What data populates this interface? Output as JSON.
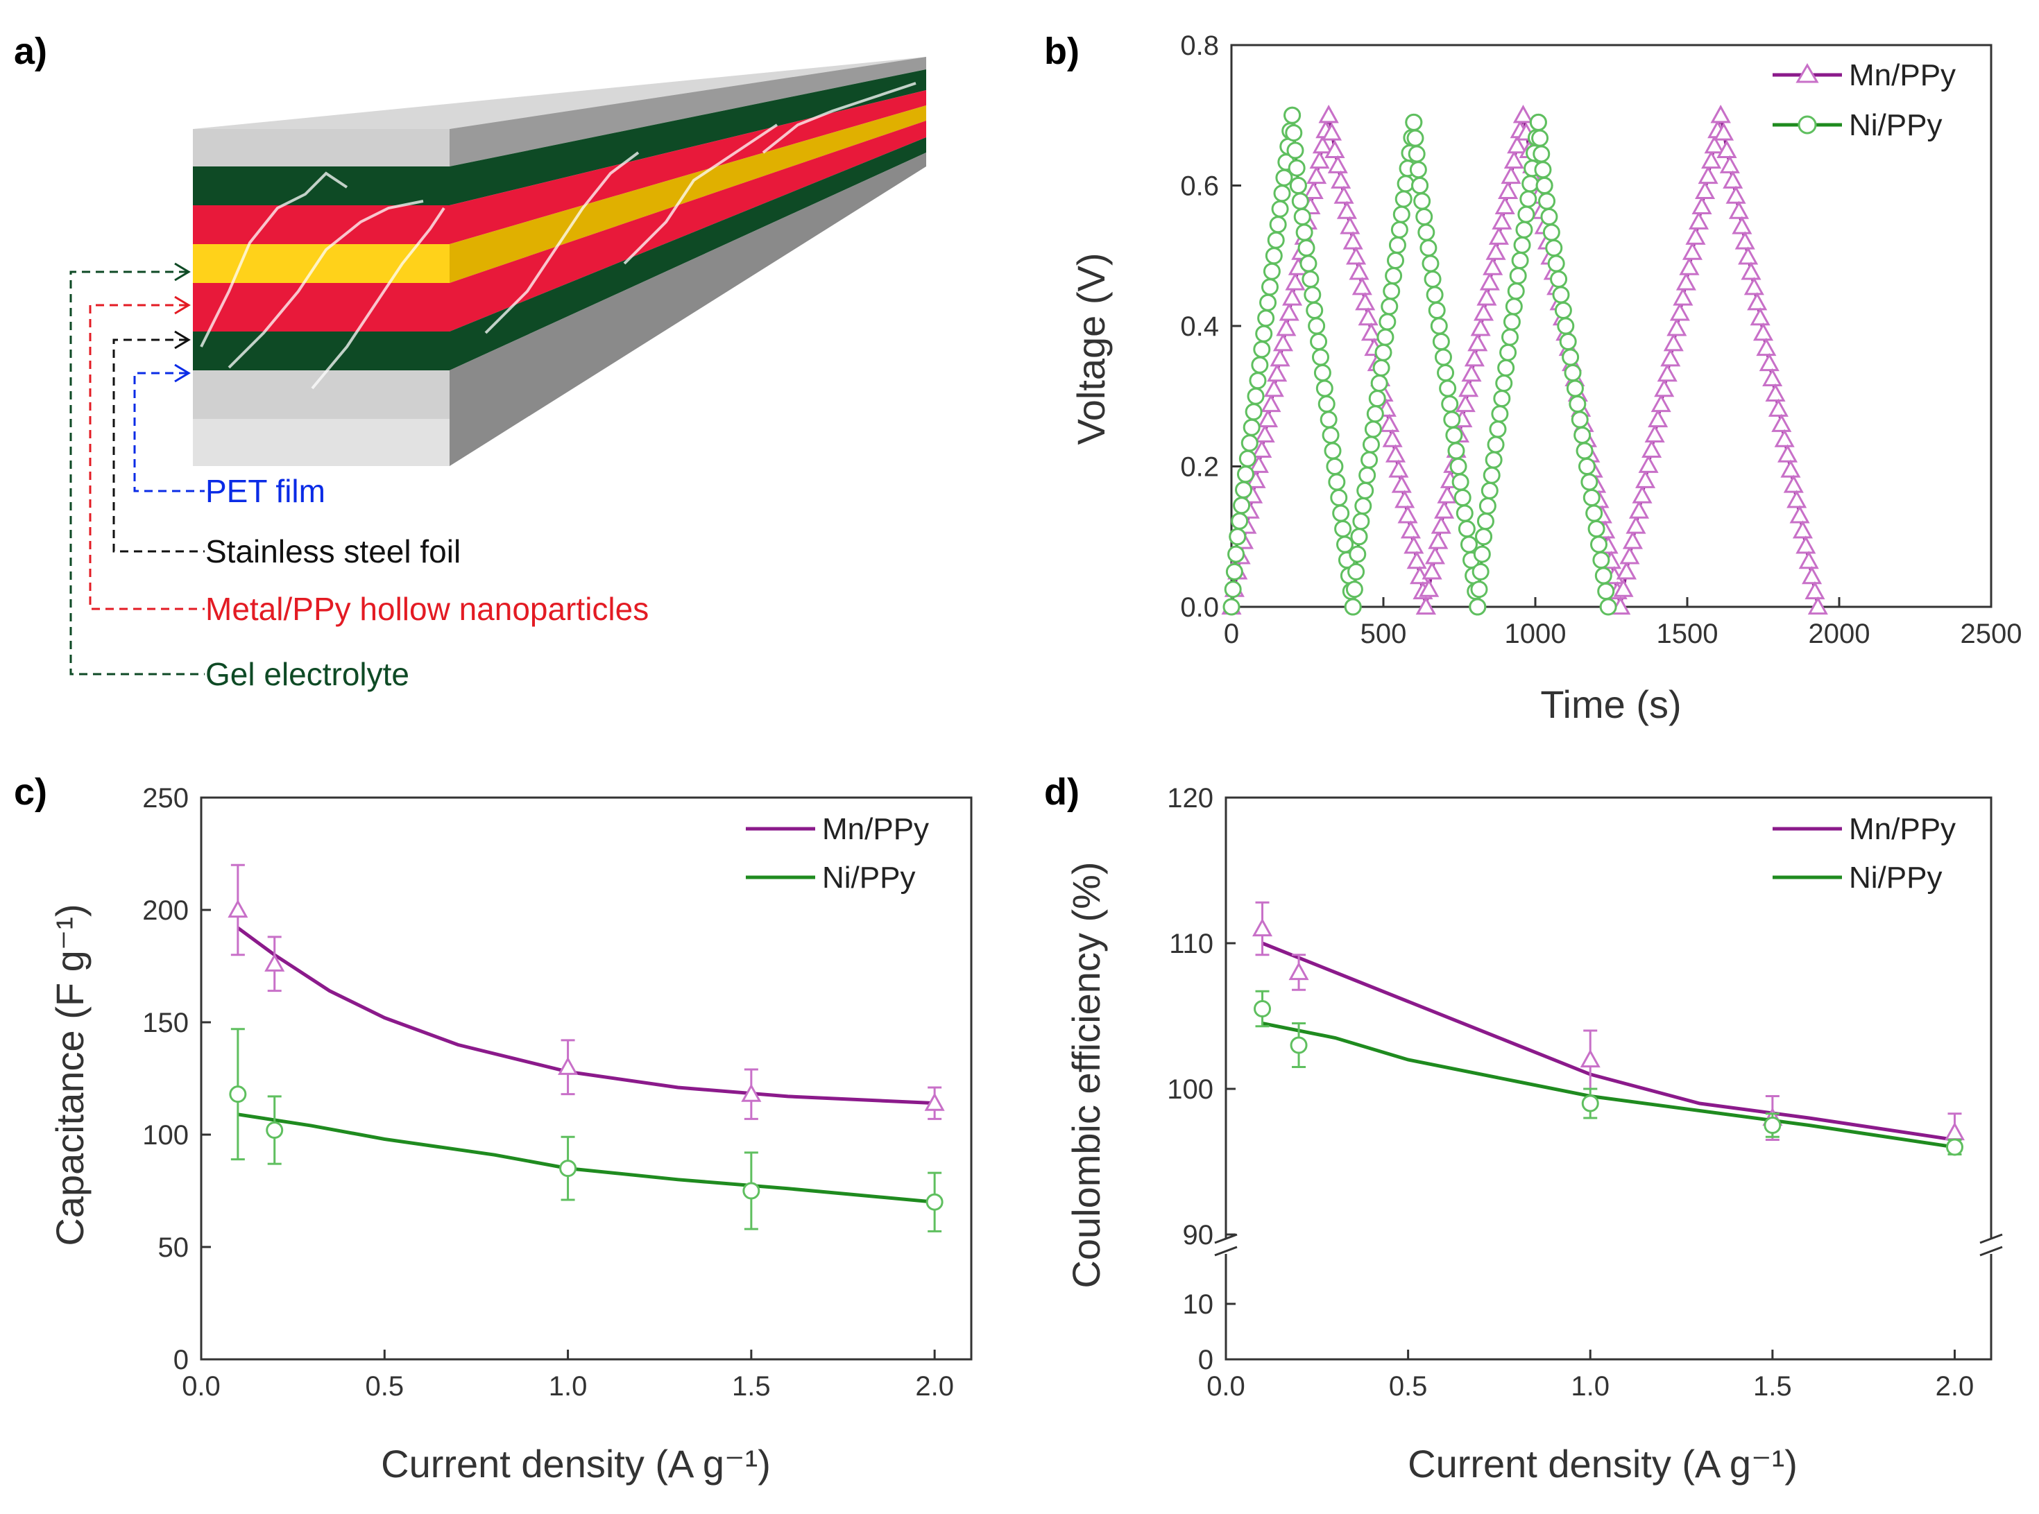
{
  "colors": {
    "mn": "#8B1A8B",
    "mn_light": "#C870C8",
    "ni": "#1F8B1F",
    "ni_light": "#5FBF5F",
    "gel": "#0E4A25",
    "red_layer": "#E8193A",
    "gold_layer": "#FFD21A",
    "pet": "#0A2BE6",
    "metal_text": "#E31B23",
    "steel_text": "#111111",
    "axis": "#333333"
  },
  "panel_a": {
    "label": "a)",
    "layers": [
      {
        "label": "PET film",
        "color": "#0A2BE6"
      },
      {
        "label": "Stainless steel foil",
        "color": "#111111"
      },
      {
        "label": "Metal/PPy hollow nanoparticles",
        "color": "#E31B23"
      },
      {
        "label": "Gel electrolyte",
        "color": "#0E4A25"
      }
    ]
  },
  "chart_data": [
    {
      "panel": "b)",
      "type": "line",
      "xlabel": "Time (s)",
      "ylabel": "Voltage (V)",
      "xlim": [
        0,
        2500
      ],
      "ylim": [
        0,
        0.8
      ],
      "xticks": [
        0,
        500,
        1000,
        1500,
        2000,
        2500
      ],
      "yticks": [
        0.0,
        0.2,
        0.4,
        0.6,
        0.8
      ],
      "xtick_labels": [
        "0",
        "500",
        "1000",
        "1500",
        "2000",
        "2500"
      ],
      "ytick_labels": [
        "0.0",
        "0.2",
        "0.4",
        "0.6",
        "0.8"
      ],
      "legend_position": "top-right",
      "series": [
        {
          "name": "Mn/PPy",
          "marker": "triangle",
          "color_key": "mn",
          "x": [
            0,
            20,
            320,
            340,
            640,
            660,
            960,
            980,
            1280,
            1300,
            1610,
            1630,
            1930
          ],
          "y": [
            0.0,
            0.05,
            0.7,
            0.65,
            0.0,
            0.05,
            0.7,
            0.65,
            0.0,
            0.05,
            0.7,
            0.65,
            0.0
          ]
        },
        {
          "name": "Ni/PPy",
          "marker": "circle",
          "color_key": "ni",
          "x": [
            0,
            20,
            200,
            220,
            400,
            420,
            600,
            620,
            810,
            830,
            1010,
            1030,
            1240
          ],
          "y": [
            0.0,
            0.1,
            0.7,
            0.6,
            0.0,
            0.1,
            0.69,
            0.6,
            0.0,
            0.1,
            0.69,
            0.6,
            0.0
          ]
        }
      ]
    },
    {
      "panel": "c)",
      "type": "scatter",
      "xlabel": "Current density (A g⁻¹)",
      "ylabel": "Capacitance (F g⁻¹)",
      "xlim": [
        0,
        2.1
      ],
      "ylim": [
        0,
        250
      ],
      "xticks": [
        0.0,
        0.5,
        1.0,
        1.5,
        2.0
      ],
      "yticks": [
        0,
        50,
        100,
        150,
        200,
        250
      ],
      "xtick_labels": [
        "0.0",
        "0.5",
        "1.0",
        "1.5",
        "2.0"
      ],
      "ytick_labels": [
        "0",
        "50",
        "100",
        "150",
        "200",
        "250"
      ],
      "legend_position": "top-right",
      "series": [
        {
          "name": "Mn/PPy",
          "marker": "triangle",
          "color_key": "mn",
          "x": [
            0.1,
            0.2,
            1.0,
            1.5,
            2.0
          ],
          "y": [
            200,
            176,
            130,
            118,
            114
          ],
          "err": [
            20,
            12,
            12,
            11,
            7
          ],
          "fit": {
            "x": [
              0.1,
              0.2,
              0.35,
              0.5,
              0.7,
              1.0,
              1.3,
              1.6,
              2.0
            ],
            "y": [
              192,
              180,
              164,
              152,
              140,
              128,
              121,
              117,
              114
            ]
          }
        },
        {
          "name": "Ni/PPy",
          "marker": "circle",
          "color_key": "ni",
          "x": [
            0.1,
            0.2,
            1.0,
            1.5,
            2.0
          ],
          "y": [
            118,
            102,
            85,
            75,
            70
          ],
          "err": [
            29,
            15,
            14,
            17,
            13
          ],
          "fit": {
            "x": [
              0.1,
              0.3,
              0.5,
              0.8,
              1.0,
              1.3,
              1.6,
              2.0
            ],
            "y": [
              109,
              104,
              98,
              91,
              85,
              80,
              76,
              70
            ]
          }
        }
      ]
    },
    {
      "panel": "d)",
      "type": "scatter",
      "xlabel": "Current density (A g⁻¹)",
      "ylabel": "Coulombic efficiency (%)",
      "xlim": [
        0,
        2.1
      ],
      "broken_y_axis": {
        "lower_range": [
          0,
          15
        ],
        "upper_range": [
          90,
          120
        ]
      },
      "xticks": [
        0.0,
        0.5,
        1.0,
        1.5,
        2.0
      ],
      "xtick_labels": [
        "0.0",
        "0.5",
        "1.0",
        "1.5",
        "2.0"
      ],
      "yticks_lower": [
        0,
        10
      ],
      "ytick_labels_lower": [
        "0",
        "10"
      ],
      "yticks_upper": [
        90,
        100,
        110,
        120
      ],
      "ytick_labels_upper": [
        "90",
        "100",
        "110",
        "120"
      ],
      "legend_position": "top-right",
      "series": [
        {
          "name": "Mn/PPy",
          "marker": "triangle",
          "color_key": "mn",
          "x": [
            0.1,
            0.2,
            1.0,
            1.5,
            2.0
          ],
          "y": [
            111,
            108,
            102,
            98,
            97
          ],
          "err": [
            1.8,
            1.2,
            2.0,
            1.5,
            1.3
          ],
          "fit": {
            "x": [
              0.1,
              0.3,
              0.5,
              0.8,
              1.0,
              1.3,
              1.6,
              2.0
            ],
            "y": [
              110,
              108,
              106,
              103,
              101,
              99,
              98,
              96.5
            ]
          }
        },
        {
          "name": "Ni/PPy",
          "marker": "circle",
          "color_key": "ni",
          "x": [
            0.1,
            0.2,
            1.0,
            1.5,
            2.0
          ],
          "y": [
            105.5,
            103,
            99,
            97.5,
            96
          ],
          "err": [
            1.2,
            1.5,
            1.0,
            0.8,
            0.5
          ],
          "fit": {
            "x": [
              0.1,
              0.3,
              0.5,
              0.8,
              1.0,
              1.3,
              1.6,
              2.0
            ],
            "y": [
              104.5,
              103.5,
              102,
              100.5,
              99.5,
              98.5,
              97.5,
              96
            ]
          }
        }
      ]
    }
  ]
}
